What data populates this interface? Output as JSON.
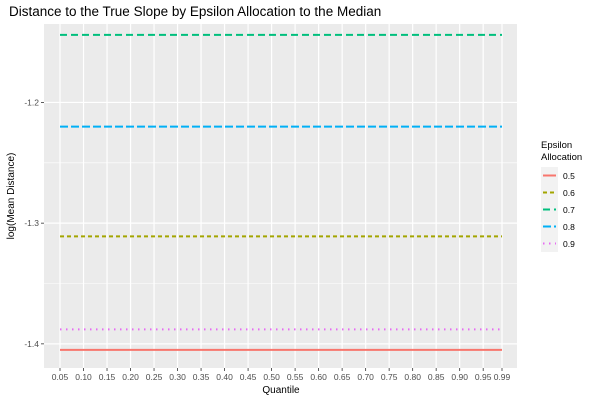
{
  "chart_data": {
    "type": "line",
    "title": "Distance to the True Slope by Epsilon Allocation to the Median",
    "xlabel": "Quantile",
    "ylabel": "log(Mean Distance)",
    "x_ticks": [
      "0.05",
      "0.10",
      "0.15",
      "0.20",
      "0.25",
      "0.30",
      "0.35",
      "0.40",
      "0.45",
      "0.50",
      "0.55",
      "0.60",
      "0.65",
      "0.70",
      "0.75",
      "0.80",
      "0.85",
      "0.90",
      "0.95",
      "0.99"
    ],
    "x_ticks_numeric": [
      0.05,
      0.1,
      0.15,
      0.2,
      0.25,
      0.3,
      0.35,
      0.4,
      0.45,
      0.5,
      0.55,
      0.6,
      0.65,
      0.7,
      0.75,
      0.8,
      0.85,
      0.9,
      0.95,
      0.99
    ],
    "xlim": [
      0.05,
      0.99
    ],
    "ylim": [
      -1.42,
      -1.135
    ],
    "y_ticks": [
      -1.2,
      -1.3,
      -1.4
    ],
    "y_tick_labels": [
      "-1.2",
      "-1.3",
      "-1.4"
    ],
    "grid": true,
    "legend": {
      "title_lines": [
        "Epsilon",
        "Allocation"
      ],
      "placement": "right"
    },
    "series": [
      {
        "name": "0.5",
        "color": "#F8766D",
        "dash": "solid",
        "value": -1.405
      },
      {
        "name": "0.6",
        "color": "#A3A500",
        "dash": "dashed",
        "value": -1.311
      },
      {
        "name": "0.7",
        "color": "#00BF7D",
        "dash": "longdash",
        "value": -1.144
      },
      {
        "name": "0.8",
        "color": "#00B0F6",
        "dash": "longdash2",
        "value": -1.22
      },
      {
        "name": "0.9",
        "color": "#E76BF3",
        "dash": "dotted",
        "value": -1.388
      }
    ]
  }
}
